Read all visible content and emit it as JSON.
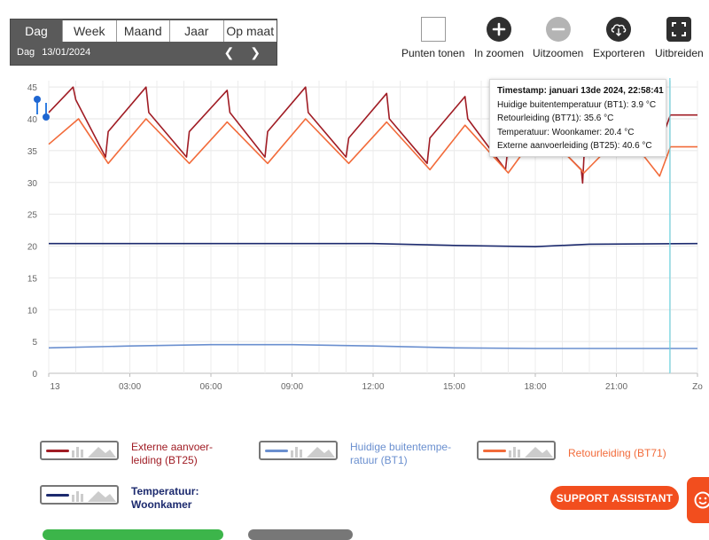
{
  "period": {
    "tabs": [
      "Dag",
      "Week",
      "Maand",
      "Jaar",
      "Op maat"
    ],
    "active_tab": "Dag",
    "row_label": "Dag",
    "date": "13/01/2024",
    "prev_icon": "chevron-left-icon",
    "next_icon": "chevron-right-icon"
  },
  "toolbar": {
    "show_points": "Punten tonen",
    "zoom_in": "In zoomen",
    "zoom_out": "Uitzoomen",
    "export": "Exporteren",
    "expand": "Uitbreiden"
  },
  "tooltip": {
    "line1": "Timestamp: januari 13de 2024, 22:58:41",
    "line2": "Huidige buitentemperatuur (BT1): 3.9 °C",
    "line3": "Retourleiding (BT71): 35.6 °C",
    "line4": "Temperatuur: Woonkamer: 20.4 °C",
    "line5": "Externe aanvoerleiding (BT25): 40.6 °C"
  },
  "legend": {
    "supply_line1": "Externe aanvoer-",
    "supply_line2": "leiding (BT25)",
    "outdoor_line1": "Huidige buitentempe-",
    "outdoor_line2": "ratuur (BT1)",
    "return_line1": "Retourleiding (BT71)",
    "indoor_line1": "Temperatuur:",
    "indoor_line2": "Woonkamer"
  },
  "support_button": "SUPPORT ASSISTANT",
  "colors": {
    "supply": "#a01c24",
    "return": "#f26b3a",
    "indoor": "#1c2a6e",
    "outdoor": "#6a8fcf",
    "accent": "#f24e1e",
    "crosshair": "#6fd3e0"
  },
  "chart_data": {
    "type": "line",
    "title": "",
    "xlabel": "",
    "ylabel": "",
    "x_unit": "hours since 00:00 on 13/01/2024",
    "xlim": [
      0,
      24
    ],
    "ylim": [
      0,
      46
    ],
    "y_ticks": [
      0,
      5,
      10,
      15,
      20,
      25,
      30,
      35,
      40,
      45
    ],
    "x_ticks": [
      {
        "x": 0,
        "label": "13"
      },
      {
        "x": 3,
        "label": "03:00"
      },
      {
        "x": 6,
        "label": "06:00"
      },
      {
        "x": 9,
        "label": "09:00"
      },
      {
        "x": 12,
        "label": "12:00"
      },
      {
        "x": 15,
        "label": "15:00"
      },
      {
        "x": 18,
        "label": "18:00"
      },
      {
        "x": 21,
        "label": "21:00"
      },
      {
        "x": 24,
        "label": "Zo"
      }
    ],
    "grid": true,
    "crosshair_x": 22.98,
    "series": [
      {
        "name": "Externe aanvoerleiding (BT25)",
        "color_key": "supply",
        "points": [
          [
            0,
            41
          ],
          [
            0.9,
            45
          ],
          [
            1.0,
            43
          ],
          [
            2.1,
            34
          ],
          [
            2.2,
            38
          ],
          [
            3.6,
            45
          ],
          [
            3.7,
            41
          ],
          [
            5.1,
            34
          ],
          [
            5.2,
            38
          ],
          [
            6.6,
            44.5
          ],
          [
            6.7,
            41
          ],
          [
            8.0,
            34
          ],
          [
            8.1,
            38
          ],
          [
            9.5,
            45
          ],
          [
            9.6,
            41
          ],
          [
            11.0,
            34
          ],
          [
            11.1,
            37
          ],
          [
            12.5,
            44
          ],
          [
            12.6,
            40
          ],
          [
            14.0,
            33
          ],
          [
            14.1,
            37
          ],
          [
            15.4,
            43.5
          ],
          [
            15.5,
            40
          ],
          [
            16.9,
            32
          ],
          [
            17.0,
            36
          ],
          [
            18.2,
            43
          ],
          [
            18.3,
            38
          ],
          [
            19.7,
            32
          ],
          [
            19.75,
            29.9
          ],
          [
            19.8,
            34
          ],
          [
            21.3,
            42
          ],
          [
            21.4,
            38
          ],
          [
            22.6,
            36
          ],
          [
            23.0,
            40.6
          ],
          [
            24,
            40.6
          ]
        ]
      },
      {
        "name": "Retourleiding (BT71)",
        "color_key": "return",
        "points": [
          [
            0,
            36
          ],
          [
            1.1,
            40
          ],
          [
            2.2,
            33
          ],
          [
            3.6,
            40
          ],
          [
            5.2,
            33
          ],
          [
            6.6,
            39.5
          ],
          [
            8.1,
            33
          ],
          [
            9.5,
            40
          ],
          [
            11.1,
            33
          ],
          [
            12.5,
            39.5
          ],
          [
            14.1,
            32
          ],
          [
            15.4,
            39
          ],
          [
            17.0,
            31.5
          ],
          [
            18.2,
            38.5
          ],
          [
            19.8,
            31.5
          ],
          [
            21.3,
            38
          ],
          [
            22.6,
            31
          ],
          [
            23.0,
            35.6
          ],
          [
            24,
            35.6
          ]
        ]
      },
      {
        "name": "Temperatuur: Woonkamer",
        "color_key": "indoor",
        "points": [
          [
            0,
            20.4
          ],
          [
            6,
            20.4
          ],
          [
            12,
            20.4
          ],
          [
            15,
            20.1
          ],
          [
            18,
            19.9
          ],
          [
            20,
            20.3
          ],
          [
            24,
            20.4
          ]
        ]
      },
      {
        "name": "Huidige buitentemperatuur (BT1)",
        "color_key": "outdoor",
        "points": [
          [
            0,
            4.0
          ],
          [
            3,
            4.3
          ],
          [
            6,
            4.5
          ],
          [
            9,
            4.5
          ],
          [
            12,
            4.3
          ],
          [
            15,
            4.0
          ],
          [
            18,
            3.9
          ],
          [
            21,
            3.9
          ],
          [
            24,
            3.9
          ]
        ]
      }
    ]
  }
}
